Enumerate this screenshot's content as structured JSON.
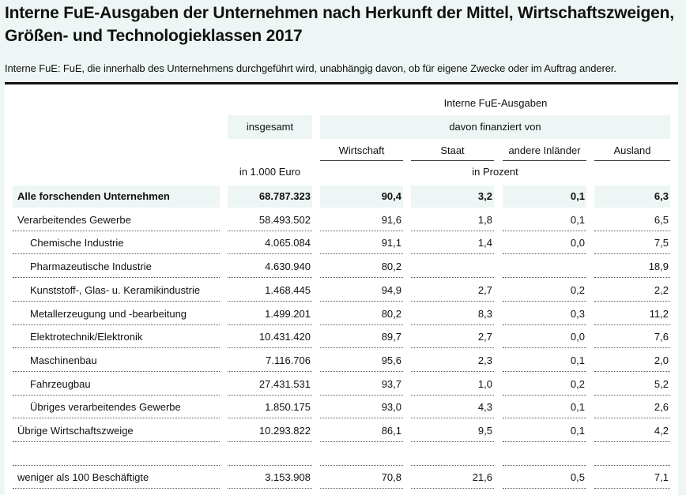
{
  "title_line1": "Interne FuE-Ausgaben der Unternehmen nach Herkunft der Mittel, Wirtschaftszweigen,",
  "title_line2": "Größen- und Technologieklassen 2017",
  "subtitle": "Interne FuE: FuE, die innerhalb des Unternehmens durchgeführt wird, unabhängig davon, ob für eigene Zwecke oder im Auftrag anderer.",
  "header": {
    "group": "Interne FuE-Ausgaben",
    "total": "insgesamt",
    "financed": "davon finanziert von",
    "columns": [
      "Wirtschaft",
      "Staat",
      "andere Inländer",
      "Ausland"
    ],
    "unit_total": "in 1.000 Euro",
    "unit_pct": "in Prozent"
  },
  "rows": [
    {
      "label": "Alle forschenden Unternehmen",
      "values": [
        "68.787.323",
        "90,4",
        "3,2",
        "0,1",
        "6,3"
      ],
      "indent": 0,
      "bold": true
    },
    {
      "label": "Verarbeitendes Gewerbe",
      "values": [
        "58.493.502",
        "91,6",
        "1,8",
        "0,1",
        "6,5"
      ],
      "indent": 0
    },
    {
      "label": "Chemische Industrie",
      "values": [
        "4.065.084",
        "91,1",
        "1,4",
        "0,0",
        "7,5"
      ],
      "indent": 1
    },
    {
      "label": "Pharmazeutische Industrie",
      "values": [
        "4.630.940",
        "80,2",
        "",
        "",
        "18,9"
      ],
      "indent": 1
    },
    {
      "label": "Kunststoff-, Glas- u. Keramikindustrie",
      "values": [
        "1.468.445",
        "94,9",
        "2,7",
        "0,2",
        "2,2"
      ],
      "indent": 1
    },
    {
      "label": "Metallerzeugung und -bearbeitung",
      "values": [
        "1.499.201",
        "80,2",
        "8,3",
        "0,3",
        "11,2"
      ],
      "indent": 1
    },
    {
      "label": "Elektrotechnik/Elektronik",
      "values": [
        "10.431.420",
        "89,7",
        "2,7",
        "0,0",
        "7,6"
      ],
      "indent": 1
    },
    {
      "label": "Maschinenbau",
      "values": [
        "7.116.706",
        "95,6",
        "2,3",
        "0,1",
        "2,0"
      ],
      "indent": 1
    },
    {
      "label": "Fahrzeugbau",
      "values": [
        "27.431.531",
        "93,7",
        "1,0",
        "0,2",
        "5,2"
      ],
      "indent": 1
    },
    {
      "label": "Übriges verarbeitendes Gewerbe",
      "values": [
        "1.850.175",
        "93,0",
        "4,3",
        "0,1",
        "2,6"
      ],
      "indent": 1
    },
    {
      "label": "Übrige Wirtschaftszweige",
      "values": [
        "10.293.822",
        "86,1",
        "9,5",
        "0,1",
        "4,2"
      ],
      "indent": 0
    },
    {
      "label": "",
      "values": [
        "",
        "",
        "",
        "",
        ""
      ],
      "indent": 0
    },
    {
      "label": "weniger als 100 Beschäftigte",
      "values": [
        "3.153.908",
        "70,8",
        "21,6",
        "0,5",
        "7,1"
      ],
      "indent": 0
    }
  ]
}
